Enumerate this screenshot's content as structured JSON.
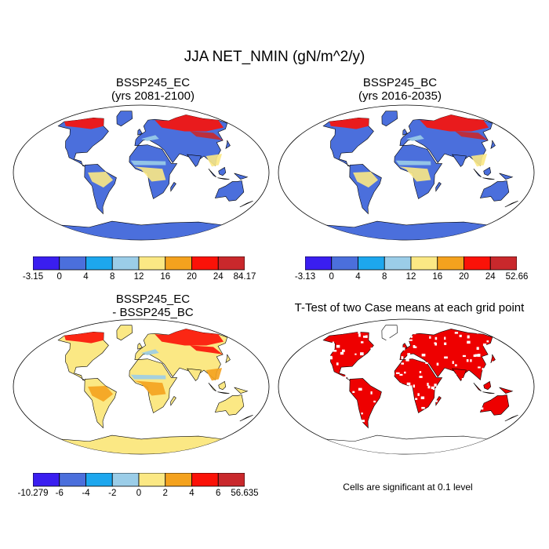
{
  "figure": {
    "title": "JJA NET_NMIN (gN/m^2/y)",
    "significance_note": "Cells are significant at 0.1 level"
  },
  "panels": [
    {
      "title_line1": "BSSP245_EC",
      "title_line2": "(yrs 2081-2100)",
      "colorbar": {
        "labels": [
          "-3.15",
          "0",
          "4",
          "8",
          "12",
          "16",
          "20",
          "24",
          "84.17"
        ],
        "colors": [
          "#3a1ef0",
          "#4b6fdc",
          "#1da7ee",
          "#9bcde8",
          "#fbe884",
          "#f4a21e",
          "#fb1208",
          "#c9282c"
        ]
      }
    },
    {
      "title_line1": "BSSP245_BC",
      "title_line2": "(yrs 2016-2035)",
      "colorbar": {
        "labels": [
          "-3.13",
          "0",
          "4",
          "8",
          "12",
          "16",
          "20",
          "24",
          "52.66"
        ],
        "colors": [
          "#3a1ef0",
          "#4b6fdc",
          "#1da7ee",
          "#9bcde8",
          "#fbe884",
          "#f4a21e",
          "#fb1208",
          "#c9282c"
        ]
      }
    },
    {
      "title_line1": "BSSP245_EC",
      "title_line2": "- BSSP245_BC",
      "colorbar": {
        "labels": [
          "-10.279",
          "-6",
          "-4",
          "-2",
          "0",
          "2",
          "4",
          "6",
          "56.635"
        ],
        "colors": [
          "#3a1ef0",
          "#4b6fdc",
          "#1da7ee",
          "#9bcde8",
          "#fbe884",
          "#f4a21e",
          "#fb1208",
          "#c9282c"
        ]
      }
    },
    {
      "title_line1": "T-Test of two Case means at each grid point"
    }
  ],
  "map_palettes": {
    "ec": {
      "land": "#4b6fdc",
      "north": "#fb1208",
      "tropics": "#fbe884",
      "hot": "#c9282c",
      "mid": "#9bcde8",
      "antarctica": "#4b6fdc"
    },
    "bc": {
      "land": "#4b6fdc",
      "north": "#fb1208",
      "tropics": "#fbe884",
      "hot": "#c9282c",
      "mid": "#9bcde8",
      "antarctica": "#4b6fdc"
    },
    "diff": {
      "land": "#fbe884",
      "north": "#fb1208",
      "tropics": "#f4a21e",
      "hot": "#fb1208",
      "mid": "#9bcde8",
      "antarctica": "#fbe884"
    },
    "ttest": {
      "land": "#ee0000",
      "north": "#ee0000",
      "tropics": "#ee0000",
      "hot": "#ee0000",
      "mid": "#ee0000",
      "antarctica": "#ffffff"
    }
  }
}
